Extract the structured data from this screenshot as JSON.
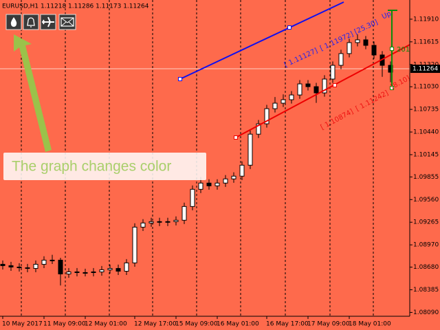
{
  "chart_data": {
    "type": "candlestick",
    "title": "EURUSD,H1  1.11218 1.11286 1.11173 1.11264",
    "background": "#fe6a4c",
    "up_color": "#ffffff",
    "down_color": "#000000",
    "current_price": 1.11264,
    "categories": [
      "10 May 2017",
      null,
      null,
      null,
      null,
      "11 May 09:00",
      null,
      null,
      null,
      null,
      "12 May 01:00",
      null,
      null,
      null,
      null,
      null,
      "12 May 17:00",
      null,
      null,
      null,
      null,
      "15 May 09:00",
      null,
      null,
      null,
      null,
      "16 May 01:00",
      null,
      null,
      null,
      null,
      null,
      "16 May 17:00",
      null,
      null,
      null,
      null,
      "17 May 09:00",
      null,
      null,
      null,
      null,
      "18 May 01:00",
      null,
      null,
      null,
      null,
      null
    ],
    "open": [
      1.08717,
      1.08699,
      1.08681,
      1.08672,
      1.08663,
      1.08717,
      1.08771,
      1.08771,
      1.08591,
      1.08618,
      1.08609,
      1.08609,
      1.08618,
      1.08645,
      1.08663,
      1.08627,
      1.08735,
      1.09201,
      1.09255,
      1.09273,
      1.09264,
      1.09273,
      1.09291,
      1.0947,
      1.09694,
      1.09775,
      1.09739,
      1.09775,
      1.09829,
      1.09865,
      1.10008,
      1.10412,
      1.10547,
      1.10744,
      1.10816,
      1.10861,
      1.10923,
      1.11067,
      1.11031,
      1.1095,
      1.1113,
      1.11309,
      1.11462,
      1.11605,
      1.11641,
      1.11569,
      1.11444,
      1.11309
    ],
    "high": [
      1.08767,
      1.08749,
      1.08731,
      1.08722,
      1.08767,
      1.08821,
      1.08841,
      1.08801,
      1.08668,
      1.08668,
      1.08659,
      1.08668,
      1.08695,
      1.08713,
      1.08713,
      1.08785,
      1.09251,
      1.09305,
      1.09323,
      1.09323,
      1.09323,
      1.09341,
      1.0952,
      1.09744,
      1.09855,
      1.09825,
      1.09825,
      1.09879,
      1.09915,
      1.10058,
      1.10462,
      1.10597,
      1.10794,
      1.10896,
      1.10931,
      1.10973,
      1.11117,
      1.11117,
      1.11081,
      1.1118,
      1.11359,
      1.11512,
      1.11655,
      1.11711,
      1.11691,
      1.11619,
      1.11494,
      1.11359
    ],
    "low": [
      1.08649,
      1.08631,
      1.08622,
      1.08613,
      1.08613,
      1.08667,
      1.08721,
      1.08441,
      1.08541,
      1.08559,
      1.08559,
      1.08559,
      1.08568,
      1.08595,
      1.08577,
      1.08577,
      1.08685,
      1.09151,
      1.09205,
      1.09214,
      1.09214,
      1.09223,
      1.09241,
      1.0942,
      1.09644,
      1.09689,
      1.09689,
      1.09725,
      1.09779,
      1.09815,
      1.09958,
      1.10362,
      1.10497,
      1.10694,
      1.10766,
      1.10811,
      1.10873,
      1.10981,
      1.1082,
      1.109,
      1.1108,
      1.11259,
      1.11412,
      1.11555,
      1.11519,
      1.11394,
      1.11159,
      1.11089
    ],
    "close": [
      1.08699,
      1.08681,
      1.08672,
      1.08663,
      1.08717,
      1.08771,
      1.08771,
      1.08591,
      1.08618,
      1.08609,
      1.08609,
      1.08618,
      1.08645,
      1.08663,
      1.08627,
      1.08735,
      1.09201,
      1.09255,
      1.09273,
      1.09264,
      1.09273,
      1.09291,
      1.0947,
      1.09694,
      1.09775,
      1.09739,
      1.09775,
      1.09829,
      1.09865,
      1.10008,
      1.10412,
      1.10547,
      1.10744,
      1.10816,
      1.10861,
      1.10923,
      1.11067,
      1.11031,
      1.1095,
      1.1113,
      1.11309,
      1.11462,
      1.11605,
      1.11641,
      1.11569,
      1.11444,
      1.11309,
      1.11219
    ],
    "ylim": [
      1.0804,
      1.1216
    ],
    "yticks": [
      {
        "value": 1.1191,
        "label": "1.11910"
      },
      1.11615,
      {
        "value": 1.1132,
        "label": "1.11320"
      },
      {
        "value": 1.1103,
        "label": "1.11030"
      },
      1.10735,
      {
        "value": 1.1044,
        "label": "1.10440"
      },
      1.10145,
      1.09855,
      {
        "value": 1.0956,
        "label": "1.09560"
      },
      1.09265,
      {
        "value": 1.0897,
        "label": "1.08970"
      },
      {
        "value": 1.0868,
        "label": "1.08680"
      },
      1.08385,
      {
        "value": 1.0809,
        "label": "1.08090"
      }
    ],
    "annotations": [
      "[ 1.11127]",
      "[ 1.11972]",
      "[25.30]",
      "Up",
      "[ 1.10874]",
      "[ 1.11242]",
      "[8.10]",
      "201"
    ],
    "overlay_text": "The graph changes color"
  }
}
